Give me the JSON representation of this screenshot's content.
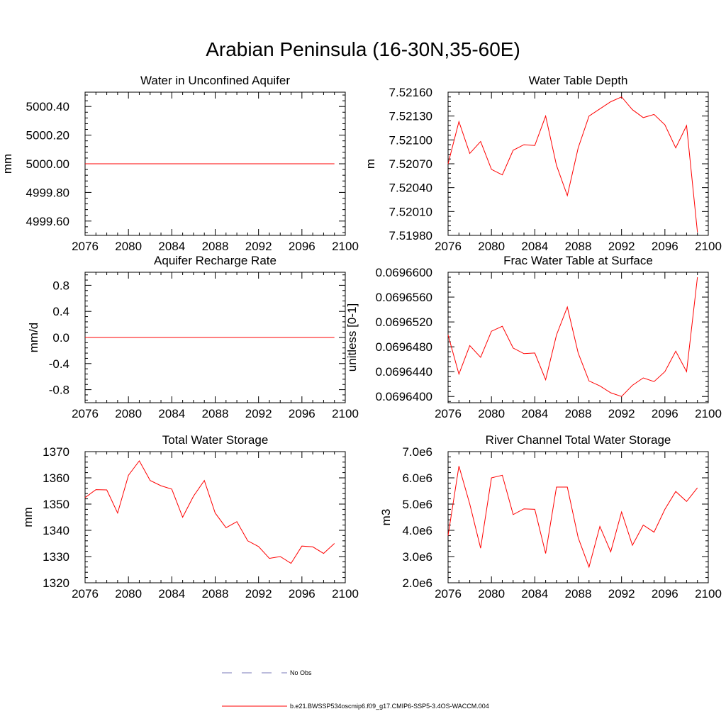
{
  "figure": {
    "title": "Arabian Peninsula (16-30N,35-60E)",
    "line_color": "#ff0000",
    "obs_color": "#7a7ab8",
    "legend": {
      "obs_label": "No Obs",
      "model_label": "b.e21.BWSSP534oscmip6.f09_g17.CMIP6-SSP5-3.4OS-WACCM.004"
    }
  },
  "chart_data": [
    {
      "id": "aquifer",
      "type": "line",
      "title": "Water in Unconfined Aquifer",
      "xlabel": "",
      "ylabel": "mm",
      "xlim": [
        2076,
        2100
      ],
      "ylim": [
        4999.5,
        5000.5
      ],
      "xticks": [
        2076,
        2080,
        2084,
        2088,
        2092,
        2096,
        2100
      ],
      "xtick_labels": [
        "2076",
        "2080",
        "2084",
        "2088",
        "2092",
        "2096",
        "2100"
      ],
      "yticks": [
        4999.6,
        4999.8,
        5000.0,
        5000.2,
        5000.4
      ],
      "ytick_labels": [
        "4999.60",
        "4999.80",
        "5000.00",
        "5000.20",
        "5000.40"
      ],
      "series": [
        {
          "x": [
            2076,
            2077,
            2078,
            2079,
            2080,
            2081,
            2082,
            2083,
            2084,
            2085,
            2086,
            2087,
            2088,
            2089,
            2090,
            2091,
            2092,
            2093,
            2094,
            2095,
            2096,
            2097,
            2098,
            2099
          ],
          "values": [
            5000,
            5000,
            5000,
            5000,
            5000,
            5000,
            5000,
            5000,
            5000,
            5000,
            5000,
            5000,
            5000,
            5000,
            5000,
            5000,
            5000,
            5000,
            5000,
            5000,
            5000,
            5000,
            5000,
            5000
          ]
        }
      ]
    },
    {
      "id": "wtd",
      "type": "line",
      "title": "Water Table Depth",
      "xlabel": "",
      "ylabel": "m",
      "xlim": [
        2076,
        2100
      ],
      "ylim": [
        7.5198,
        7.5216
      ],
      "xticks": [
        2076,
        2080,
        2084,
        2088,
        2092,
        2096,
        2100
      ],
      "xtick_labels": [
        "2076",
        "2080",
        "2084",
        "2088",
        "2092",
        "2096",
        "2100"
      ],
      "yticks": [
        7.5198,
        7.5201,
        7.5204,
        7.5207,
        7.521,
        7.5213,
        7.5216
      ],
      "ytick_labels": [
        "7.51980",
        "7.52010",
        "7.52040",
        "7.52070",
        "7.52100",
        "7.52130",
        "7.52160"
      ],
      "series": [
        {
          "x": [
            2076,
            2077,
            2078,
            2079,
            2080,
            2081,
            2082,
            2083,
            2084,
            2085,
            2086,
            2087,
            2088,
            2089,
            2090,
            2091,
            2092,
            2093,
            2094,
            2095,
            2096,
            2097,
            2098,
            2099
          ],
          "values": [
            7.5207,
            7.52123,
            7.52083,
            7.52098,
            7.52063,
            7.52056,
            7.52087,
            7.52094,
            7.52093,
            7.5213,
            7.52068,
            7.5203,
            7.5209,
            7.5213,
            7.52139,
            7.52148,
            7.52154,
            7.52138,
            7.52128,
            7.52132,
            7.52119,
            7.5209,
            7.52118,
            7.51984
          ]
        }
      ]
    },
    {
      "id": "recharge",
      "type": "line",
      "title": "Aquifer Recharge Rate",
      "xlabel": "",
      "ylabel": "mm/d",
      "xlim": [
        2076,
        2100
      ],
      "ylim": [
        -1.0,
        1.0
      ],
      "xticks": [
        2076,
        2080,
        2084,
        2088,
        2092,
        2096,
        2100
      ],
      "xtick_labels": [
        "2076",
        "2080",
        "2084",
        "2088",
        "2092",
        "2096",
        "2100"
      ],
      "yticks": [
        -0.8,
        -0.4,
        0.0,
        0.4,
        0.8
      ],
      "ytick_labels": [
        "-0.8",
        "-0.4",
        "0.0",
        "0.4",
        "0.8"
      ],
      "series": [
        {
          "x": [
            2076,
            2077,
            2078,
            2079,
            2080,
            2081,
            2082,
            2083,
            2084,
            2085,
            2086,
            2087,
            2088,
            2089,
            2090,
            2091,
            2092,
            2093,
            2094,
            2095,
            2096,
            2097,
            2098,
            2099
          ],
          "values": [
            0,
            0,
            0,
            0,
            0,
            0,
            0,
            0,
            0,
            0,
            0,
            0,
            0,
            0,
            0,
            0,
            0,
            0,
            0,
            0,
            0,
            0,
            0,
            0
          ]
        }
      ]
    },
    {
      "id": "fracwt",
      "type": "line",
      "title": "Frac Water Table at Surface",
      "xlabel": "",
      "ylabel": "unitless [0-1]",
      "xlim": [
        2076,
        2100
      ],
      "ylim": [
        0.069639,
        0.06966
      ],
      "xticks": [
        2076,
        2080,
        2084,
        2088,
        2092,
        2096,
        2100
      ],
      "xtick_labels": [
        "2076",
        "2080",
        "2084",
        "2088",
        "2092",
        "2096",
        "2100"
      ],
      "yticks": [
        0.06964,
        0.069644,
        0.069648,
        0.069652,
        0.069656,
        0.06966
      ],
      "ytick_labels": [
        "0.0696400",
        "0.0696440",
        "0.0696480",
        "0.0696520",
        "0.0696560",
        "0.0696600"
      ],
      "series": [
        {
          "x": [
            2076,
            2077,
            2078,
            2079,
            2080,
            2081,
            2082,
            2083,
            2084,
            2085,
            2086,
            2087,
            2088,
            2089,
            2090,
            2091,
            2092,
            2093,
            2094,
            2095,
            2096,
            2097,
            2098,
            2099
          ],
          "values": [
            0.0696499,
            0.0696436,
            0.0696482,
            0.0696463,
            0.0696505,
            0.0696513,
            0.0696478,
            0.0696469,
            0.069647,
            0.0696427,
            0.0696499,
            0.0696544,
            0.069647,
            0.0696425,
            0.0696417,
            0.0696406,
            0.06964,
            0.0696418,
            0.069643,
            0.0696424,
            0.069644,
            0.0696473,
            0.069644,
            0.0696592
          ]
        }
      ]
    },
    {
      "id": "tws",
      "type": "line",
      "title": "Total Water Storage",
      "xlabel": "",
      "ylabel": "mm",
      "xlim": [
        2076,
        2100
      ],
      "ylim": [
        1320,
        1370
      ],
      "xticks": [
        2076,
        2080,
        2084,
        2088,
        2092,
        2096,
        2100
      ],
      "xtick_labels": [
        "2076",
        "2080",
        "2084",
        "2088",
        "2092",
        "2096",
        "2100"
      ],
      "yticks": [
        1320,
        1330,
        1340,
        1350,
        1360,
        1370
      ],
      "ytick_labels": [
        "1320",
        "1330",
        "1340",
        "1350",
        "1360",
        "1370"
      ],
      "series": [
        {
          "x": [
            2076,
            2077,
            2078,
            2079,
            2080,
            2081,
            2082,
            2083,
            2084,
            2085,
            2086,
            2087,
            2088,
            2089,
            2090,
            2091,
            2092,
            2093,
            2094,
            2095,
            2096,
            2097,
            2098,
            2099
          ],
          "values": [
            1352.5,
            1355.5,
            1355.4,
            1346.6,
            1361.0,
            1366.5,
            1359.0,
            1357.0,
            1355.7,
            1345.0,
            1353.0,
            1359.0,
            1346.6,
            1341.0,
            1343.3,
            1336.0,
            1333.8,
            1329.3,
            1330.0,
            1327.4,
            1334.0,
            1333.7,
            1331.2,
            1335.0
          ]
        }
      ]
    },
    {
      "id": "river",
      "type": "line",
      "title": "River Channel Total Water Storage",
      "xlabel": "",
      "ylabel": "m3",
      "xlim": [
        2076,
        2100
      ],
      "ylim": [
        2000000.0,
        7000000.0
      ],
      "xticks": [
        2076,
        2080,
        2084,
        2088,
        2092,
        2096,
        2100
      ],
      "xtick_labels": [
        "2076",
        "2080",
        "2084",
        "2088",
        "2092",
        "2096",
        "2100"
      ],
      "yticks": [
        2000000.0,
        3000000.0,
        4000000.0,
        5000000.0,
        6000000.0,
        7000000.0
      ],
      "ytick_labels": [
        "2.0e6",
        "3.0e6",
        "4.0e6",
        "5.0e6",
        "6.0e6",
        "7.0e6"
      ],
      "series": [
        {
          "x": [
            2076,
            2077,
            2078,
            2079,
            2080,
            2081,
            2082,
            2083,
            2084,
            2085,
            2086,
            2087,
            2088,
            2089,
            2090,
            2091,
            2092,
            2093,
            2094,
            2095,
            2096,
            2097,
            2098,
            2099
          ],
          "values": [
            3800000.0,
            6450000.0,
            5000000.0,
            3320000.0,
            6000000.0,
            6100000.0,
            4600000.0,
            4820000.0,
            4800000.0,
            3120000.0,
            5650000.0,
            5650000.0,
            3720000.0,
            2600000.0,
            4150000.0,
            3180000.0,
            4700000.0,
            3430000.0,
            4200000.0,
            3930000.0,
            4800000.0,
            5480000.0,
            5100000.0,
            5620000.0
          ]
        }
      ]
    }
  ]
}
